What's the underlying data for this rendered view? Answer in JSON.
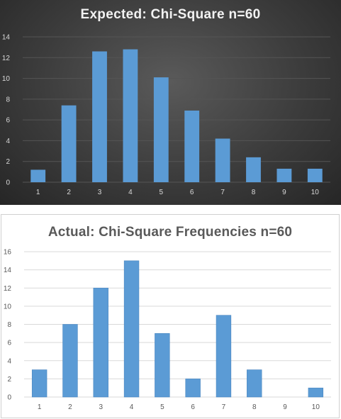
{
  "chart_data": [
    {
      "type": "bar",
      "title": "Expected:  Chi-Square  n=60",
      "categories": [
        "1",
        "2",
        "3",
        "4",
        "5",
        "6",
        "7",
        "8",
        "9",
        "10"
      ],
      "values": [
        1.2,
        7.4,
        12.6,
        12.8,
        10.1,
        6.9,
        4.2,
        2.4,
        1.3,
        1.3
      ],
      "xlabel": "",
      "ylabel": "",
      "ylim": [
        0,
        14
      ],
      "yticks": [
        0,
        2,
        4,
        6,
        8,
        10,
        12,
        14
      ],
      "grid": true,
      "legend": "none",
      "colors": {
        "bar": "#5b9bd5",
        "background": "#3a3a3a",
        "text": "#d9d9d9",
        "grid": "#555555"
      }
    },
    {
      "type": "bar",
      "title": "Actual: Chi-Square  Frequencies n=60",
      "categories": [
        "1",
        "2",
        "3",
        "4",
        "5",
        "6",
        "7",
        "8",
        "9",
        "10"
      ],
      "values": [
        3,
        8,
        12,
        15,
        7,
        2,
        9,
        3,
        0,
        1
      ],
      "xlabel": "",
      "ylabel": "",
      "ylim": [
        0,
        16
      ],
      "yticks": [
        0,
        2,
        4,
        6,
        8,
        10,
        12,
        14,
        16
      ],
      "grid": true,
      "legend": "none",
      "colors": {
        "bar": "#5b9bd5",
        "background": "#ffffff",
        "text": "#595959",
        "grid": "#d9d9d9"
      }
    }
  ]
}
